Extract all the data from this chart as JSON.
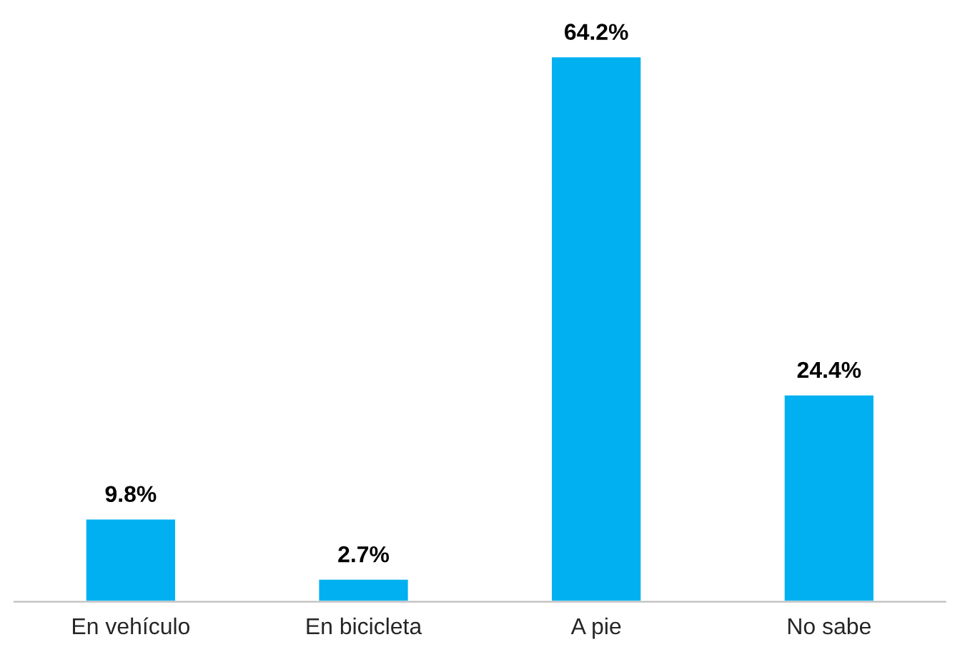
{
  "chart_data": {
    "type": "bar",
    "categories": [
      "En vehículo",
      "En bicicleta",
      "A pie",
      "No sabe"
    ],
    "values": [
      9.8,
      2.7,
      64.2,
      24.4
    ],
    "value_labels": [
      "9.8%",
      "2.7%",
      "64.2%",
      "24.4%"
    ],
    "color": "#00b0f0",
    "grid": false,
    "legend": false
  }
}
